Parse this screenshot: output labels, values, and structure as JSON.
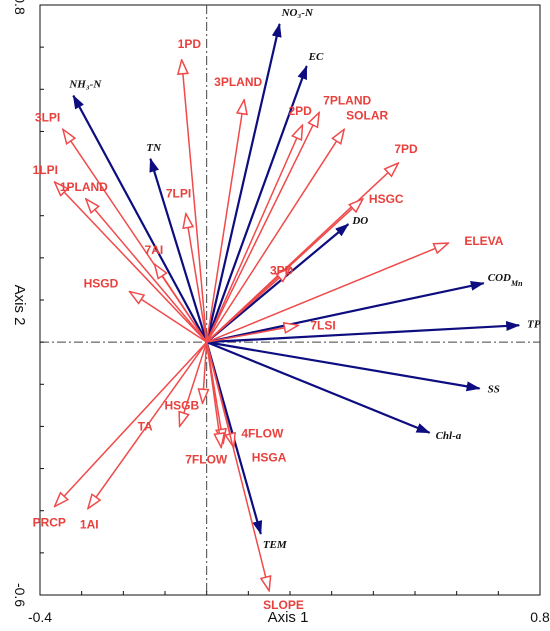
{
  "chart_data": {
    "type": "biplot",
    "xlabel": "Axis 1",
    "ylabel": "Axis 2",
    "xlim": [
      -0.4,
      0.8
    ],
    "ylim": [
      -0.6,
      0.8
    ],
    "x_tick_labels": [
      {
        "value": -0.4,
        "text": "-0.4"
      },
      {
        "value": 0.8,
        "text": "0.8"
      }
    ],
    "y_tick_labels": [
      {
        "value": 0.8,
        "text": "0.8"
      },
      {
        "value": -0.6,
        "text": "-0.6"
      }
    ],
    "colors": {
      "environmental": "#0d0d80",
      "landscape": "#f04a4a",
      "labels_environmental": "#111111",
      "labels_landscape": "#e8413d"
    },
    "series": [
      {
        "group": "environmental",
        "arrow_style": "filled",
        "label_style": "italic",
        "vectors": [
          {
            "label": "NO₃-N",
            "x": 0.175,
            "y": 0.755
          },
          {
            "label": "EC",
            "x": 0.24,
            "y": 0.655
          },
          {
            "label": "NH₃-N",
            "x": -0.32,
            "y": 0.585
          },
          {
            "label": "TN",
            "x": -0.135,
            "y": 0.435
          },
          {
            "label": "DO",
            "x": 0.34,
            "y": 0.28
          },
          {
            "label": "COD",
            "label_subscript": "Mn",
            "x": 0.665,
            "y": 0.14
          },
          {
            "label": "TP",
            "x": 0.75,
            "y": 0.04
          },
          {
            "label": "SS",
            "x": 0.655,
            "y": -0.11
          },
          {
            "label": "Chl-a",
            "x": 0.535,
            "y": -0.215
          },
          {
            "label": "TEM",
            "x": 0.13,
            "y": -0.455
          }
        ]
      },
      {
        "group": "landscape",
        "arrow_style": "open",
        "label_style": "bold",
        "vectors": [
          {
            "label": "1PD",
            "x": -0.06,
            "y": 0.67
          },
          {
            "label": "3PLAND",
            "x": 0.09,
            "y": 0.575
          },
          {
            "label": "7PLAND",
            "x": 0.27,
            "y": 0.545
          },
          {
            "label": "2PD",
            "x": 0.23,
            "y": 0.515
          },
          {
            "label": "SOLAR",
            "x": 0.33,
            "y": 0.505
          },
          {
            "label": "3LPI",
            "x": -0.345,
            "y": 0.505
          },
          {
            "label": "7PD",
            "x": 0.46,
            "y": 0.425
          },
          {
            "label": "1LPI",
            "x": -0.365,
            "y": 0.38
          },
          {
            "label": "1PLAND",
            "x": -0.29,
            "y": 0.34
          },
          {
            "label": "HSGC",
            "x": 0.375,
            "y": 0.34
          },
          {
            "label": "7LPI",
            "x": -0.05,
            "y": 0.305
          },
          {
            "label": "ELEVA",
            "x": 0.58,
            "y": 0.235
          },
          {
            "label": "3PD",
            "x": 0.2,
            "y": 0.175
          },
          {
            "label": "7AI",
            "x": -0.125,
            "y": 0.185
          },
          {
            "label": "HSGD",
            "x": -0.185,
            "y": 0.12
          },
          {
            "label": "7LSI",
            "x": 0.22,
            "y": 0.04
          },
          {
            "label": "HSGB",
            "x": -0.01,
            "y": -0.145
          },
          {
            "label": "TA",
            "x": -0.065,
            "y": -0.2
          },
          {
            "label": "4FLOW",
            "x": 0.04,
            "y": -0.24
          },
          {
            "label": "7FLOW",
            "x": 0.035,
            "y": -0.25
          },
          {
            "label": "HSGA",
            "x": 0.065,
            "y": -0.25
          },
          {
            "label": "PRCP",
            "x": -0.365,
            "y": -0.39
          },
          {
            "label": "1AI",
            "x": -0.285,
            "y": -0.395
          },
          {
            "label": "SLOPE",
            "x": 0.15,
            "y": -0.59
          }
        ]
      }
    ]
  }
}
